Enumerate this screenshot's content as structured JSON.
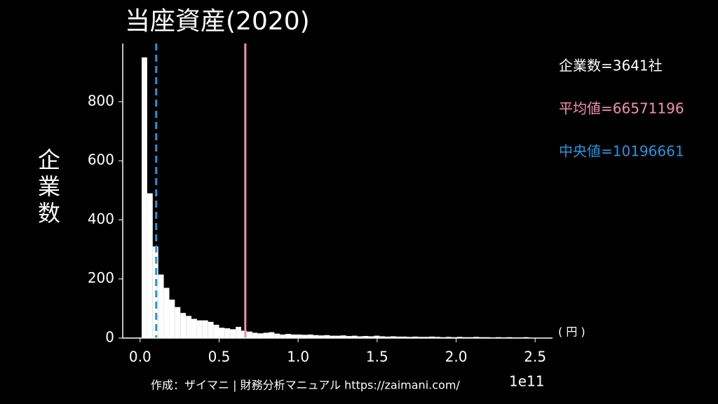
{
  "chart_data": {
    "type": "histogram",
    "title": "当座資産(2020)",
    "y_label": "企業数",
    "x_unit": "( 円 )",
    "x_offset_label": "1e11",
    "bins": [
      0.01,
      0.045,
      0.08,
      0.115,
      0.15,
      0.185,
      0.22,
      0.255,
      0.29,
      0.325,
      0.36,
      0.395,
      0.43,
      0.465,
      0.5,
      0.535,
      0.57,
      0.605,
      0.64,
      0.675,
      0.71,
      0.745,
      0.78,
      0.815,
      0.85,
      0.885,
      0.92,
      0.955,
      0.99,
      1.025,
      1.06,
      1.095,
      1.13,
      1.165,
      1.2,
      1.235,
      1.27,
      1.305,
      1.34,
      1.375,
      1.41,
      1.445,
      1.48,
      1.515,
      1.55,
      1.585,
      1.62,
      1.655,
      1.69,
      1.725,
      1.76,
      1.795,
      1.83,
      1.865,
      1.9,
      1.935,
      1.97,
      2.005,
      2.04,
      2.075,
      2.11,
      2.145,
      2.18,
      2.215,
      2.25,
      2.285,
      2.32,
      2.355,
      2.39,
      2.425,
      2.46
    ],
    "values": [
      950,
      490,
      310,
      215,
      170,
      130,
      105,
      85,
      75,
      65,
      60,
      60,
      55,
      45,
      35,
      33,
      30,
      38,
      25,
      22,
      18,
      16,
      18,
      20,
      15,
      12,
      14,
      12,
      12,
      11,
      12,
      10,
      9,
      10,
      8,
      8,
      9,
      7,
      8,
      6,
      7,
      6,
      8,
      6,
      5,
      6,
      5,
      5,
      4,
      5,
      4,
      4,
      5,
      4,
      3,
      4,
      3,
      4,
      3,
      3,
      4,
      3,
      3,
      2,
      3,
      2,
      3,
      2,
      2,
      3
    ],
    "color": "#ffffff",
    "mean": 0.6657,
    "mean_color": "#f48fb1",
    "median": 0.102,
    "median_color": "#2196e0",
    "stats": [
      {
        "text": "企業数=3641社",
        "color": "#ffffff"
      },
      {
        "text": "平均値=66571196",
        "color": "#f48fb1"
      },
      {
        "text": "中央値=10196661",
        "color": "#2196e0"
      }
    ],
    "xlim": [
      -0.11,
      2.61
    ],
    "ylim": [
      0,
      997
    ],
    "xticks": [
      {
        "value": 0,
        "label": "0.0"
      },
      0.5,
      {
        "value": 1,
        "label": "1.0"
      },
      1.5,
      {
        "value": 2,
        "label": "2.0"
      },
      2.5
    ],
    "yticks": [
      0,
      200,
      400,
      600,
      800
    ],
    "footer": "作成：ザイマニ | 財務分析マニュアル https://zaimani.com/"
  }
}
